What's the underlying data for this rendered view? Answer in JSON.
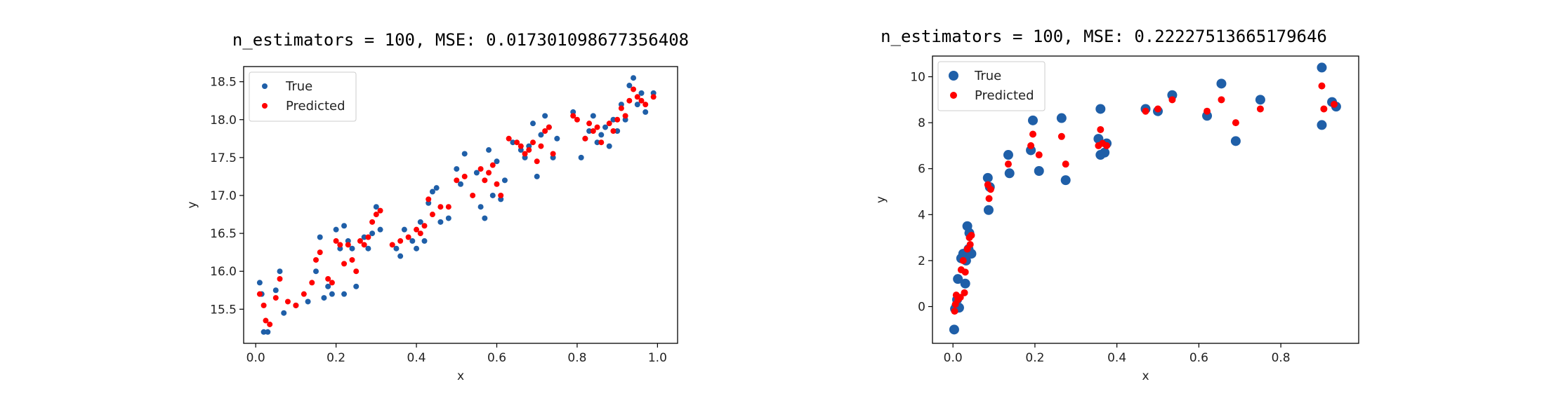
{
  "chart_data": [
    {
      "type": "scatter",
      "title": "n_estimators = 100,  MSE:  0.017301098677356408",
      "xlabel": "x",
      "ylabel": "y",
      "xlim": [
        -0.03,
        1.05
      ],
      "ylim": [
        15.05,
        18.7
      ],
      "xticks": [
        0.0,
        0.2,
        0.4,
        0.6,
        0.8,
        1.0
      ],
      "xtick_labels": [
        "0.0",
        "0.2",
        "0.4",
        "0.6",
        "0.8",
        "1.0"
      ],
      "yticks": [
        15.5,
        16.0,
        16.5,
        17.0,
        17.5,
        18.0,
        18.5
      ],
      "ytick_labels": [
        "15.5",
        "16.0",
        "16.5",
        "17.0",
        "17.5",
        "18.0",
        "18.5"
      ],
      "legend": "upper-left",
      "series": [
        {
          "name": "True",
          "color": "#1f5fa8",
          "marker_size": 4,
          "points": [
            [
              0.01,
              15.85
            ],
            [
              0.02,
              15.2
            ],
            [
              0.03,
              15.2
            ],
            [
              0.015,
              15.7
            ],
            [
              0.05,
              15.75
            ],
            [
              0.06,
              16.0
            ],
            [
              0.07,
              15.45
            ],
            [
              0.1,
              15.55
            ],
            [
              0.13,
              15.6
            ],
            [
              0.15,
              16.0
            ],
            [
              0.16,
              16.45
            ],
            [
              0.17,
              15.65
            ],
            [
              0.18,
              15.8
            ],
            [
              0.19,
              15.7
            ],
            [
              0.2,
              16.55
            ],
            [
              0.21,
              16.3
            ],
            [
              0.22,
              16.6
            ],
            [
              0.23,
              16.4
            ],
            [
              0.22,
              15.7
            ],
            [
              0.24,
              16.3
            ],
            [
              0.25,
              15.8
            ],
            [
              0.27,
              16.45
            ],
            [
              0.28,
              16.3
            ],
            [
              0.29,
              16.5
            ],
            [
              0.3,
              16.85
            ],
            [
              0.31,
              16.55
            ],
            [
              0.35,
              16.3
            ],
            [
              0.36,
              16.2
            ],
            [
              0.37,
              16.55
            ],
            [
              0.39,
              16.4
            ],
            [
              0.4,
              16.3
            ],
            [
              0.41,
              16.65
            ],
            [
              0.42,
              16.4
            ],
            [
              0.43,
              16.9
            ],
            [
              0.44,
              17.05
            ],
            [
              0.45,
              17.1
            ],
            [
              0.46,
              16.65
            ],
            [
              0.48,
              16.7
            ],
            [
              0.5,
              17.35
            ],
            [
              0.51,
              17.15
            ],
            [
              0.52,
              17.55
            ],
            [
              0.55,
              17.3
            ],
            [
              0.56,
              16.85
            ],
            [
              0.57,
              16.7
            ],
            [
              0.58,
              17.6
            ],
            [
              0.59,
              17.0
            ],
            [
              0.6,
              17.45
            ],
            [
              0.61,
              16.95
            ],
            [
              0.62,
              17.2
            ],
            [
              0.64,
              17.7
            ],
            [
              0.66,
              17.6
            ],
            [
              0.67,
              17.5
            ],
            [
              0.68,
              17.65
            ],
            [
              0.69,
              17.95
            ],
            [
              0.7,
              17.25
            ],
            [
              0.71,
              17.8
            ],
            [
              0.72,
              18.05
            ],
            [
              0.73,
              17.9
            ],
            [
              0.74,
              17.5
            ],
            [
              0.75,
              17.75
            ],
            [
              0.79,
              18.1
            ],
            [
              0.81,
              17.5
            ],
            [
              0.82,
              17.75
            ],
            [
              0.83,
              17.85
            ],
            [
              0.84,
              18.05
            ],
            [
              0.85,
              17.7
            ],
            [
              0.86,
              17.8
            ],
            [
              0.87,
              17.9
            ],
            [
              0.88,
              17.65
            ],
            [
              0.89,
              18.0
            ],
            [
              0.9,
              17.85
            ],
            [
              0.91,
              18.2
            ],
            [
              0.92,
              18.0
            ],
            [
              0.93,
              18.45
            ],
            [
              0.94,
              18.55
            ],
            [
              0.95,
              18.2
            ],
            [
              0.96,
              18.35
            ],
            [
              0.97,
              18.1
            ],
            [
              0.99,
              18.35
            ]
          ]
        },
        {
          "name": "Predicted",
          "color": "#ff0000",
          "marker_size": 4,
          "points": [
            [
              0.01,
              15.7
            ],
            [
              0.02,
              15.55
            ],
            [
              0.025,
              15.35
            ],
            [
              0.035,
              15.3
            ],
            [
              0.05,
              15.65
            ],
            [
              0.06,
              15.9
            ],
            [
              0.08,
              15.6
            ],
            [
              0.1,
              15.55
            ],
            [
              0.12,
              15.7
            ],
            [
              0.14,
              15.85
            ],
            [
              0.15,
              16.15
            ],
            [
              0.16,
              16.25
            ],
            [
              0.18,
              15.9
            ],
            [
              0.19,
              15.85
            ],
            [
              0.2,
              16.4
            ],
            [
              0.21,
              16.35
            ],
            [
              0.22,
              16.1
            ],
            [
              0.23,
              16.35
            ],
            [
              0.24,
              16.15
            ],
            [
              0.25,
              16.0
            ],
            [
              0.26,
              16.4
            ],
            [
              0.27,
              16.35
            ],
            [
              0.28,
              16.45
            ],
            [
              0.29,
              16.65
            ],
            [
              0.3,
              16.75
            ],
            [
              0.31,
              16.8
            ],
            [
              0.34,
              16.35
            ],
            [
              0.36,
              16.4
            ],
            [
              0.38,
              16.45
            ],
            [
              0.4,
              16.55
            ],
            [
              0.41,
              16.5
            ],
            [
              0.42,
              16.6
            ],
            [
              0.43,
              16.95
            ],
            [
              0.44,
              16.75
            ],
            [
              0.46,
              16.85
            ],
            [
              0.48,
              16.85
            ],
            [
              0.5,
              17.2
            ],
            [
              0.52,
              17.25
            ],
            [
              0.54,
              17.0
            ],
            [
              0.56,
              17.35
            ],
            [
              0.57,
              17.2
            ],
            [
              0.58,
              17.3
            ],
            [
              0.59,
              17.4
            ],
            [
              0.6,
              17.15
            ],
            [
              0.61,
              17.0
            ],
            [
              0.63,
              17.75
            ],
            [
              0.65,
              17.7
            ],
            [
              0.66,
              17.65
            ],
            [
              0.67,
              17.55
            ],
            [
              0.68,
              17.6
            ],
            [
              0.69,
              17.7
            ],
            [
              0.7,
              17.45
            ],
            [
              0.71,
              17.65
            ],
            [
              0.72,
              17.85
            ],
            [
              0.73,
              17.9
            ],
            [
              0.74,
              17.55
            ],
            [
              0.79,
              18.05
            ],
            [
              0.8,
              18.0
            ],
            [
              0.82,
              17.75
            ],
            [
              0.83,
              17.95
            ],
            [
              0.84,
              17.85
            ],
            [
              0.85,
              17.9
            ],
            [
              0.86,
              17.7
            ],
            [
              0.88,
              17.95
            ],
            [
              0.89,
              17.85
            ],
            [
              0.9,
              18.0
            ],
            [
              0.91,
              18.15
            ],
            [
              0.92,
              18.05
            ],
            [
              0.93,
              18.25
            ],
            [
              0.94,
              18.4
            ],
            [
              0.95,
              18.3
            ],
            [
              0.96,
              18.25
            ],
            [
              0.97,
              18.2
            ],
            [
              0.99,
              18.3
            ]
          ]
        }
      ]
    },
    {
      "type": "scatter",
      "title": "n_estimators = 100,  MSE:  0.22227513665179646",
      "xlabel": "x",
      "ylabel": "y",
      "xlim": [
        -0.05,
        0.99
      ],
      "ylim": [
        -1.6,
        10.9
      ],
      "xticks": [
        0.0,
        0.2,
        0.4,
        0.6,
        0.8
      ],
      "xtick_labels": [
        "0.0",
        "0.2",
        "0.4",
        "0.6",
        "0.8"
      ],
      "yticks": [
        0,
        2,
        4,
        6,
        8,
        10
      ],
      "ytick_labels": [
        "0",
        "2",
        "4",
        "6",
        "8",
        "10"
      ],
      "legend": "upper-left",
      "series": [
        {
          "name": "True",
          "color": "#1f5fa8",
          "marker_size": 7,
          "points": [
            [
              0.003,
              -1.0
            ],
            [
              0.005,
              -0.1
            ],
            [
              0.008,
              0.0
            ],
            [
              0.01,
              0.3
            ],
            [
              0.012,
              1.2
            ],
            [
              0.015,
              -0.05
            ],
            [
              0.02,
              2.1
            ],
            [
              0.025,
              2.3
            ],
            [
              0.03,
              1.0
            ],
            [
              0.032,
              2.0
            ],
            [
              0.035,
              3.5
            ],
            [
              0.038,
              2.5
            ],
            [
              0.04,
              3.2
            ],
            [
              0.045,
              2.3
            ],
            [
              0.085,
              5.6
            ],
            [
              0.087,
              4.2
            ],
            [
              0.09,
              5.2
            ],
            [
              0.135,
              6.6
            ],
            [
              0.138,
              5.8
            ],
            [
              0.19,
              6.8
            ],
            [
              0.195,
              8.1
            ],
            [
              0.21,
              5.9
            ],
            [
              0.265,
              8.2
            ],
            [
              0.275,
              5.5
            ],
            [
              0.355,
              7.3
            ],
            [
              0.36,
              8.6
            ],
            [
              0.36,
              6.6
            ],
            [
              0.37,
              6.7
            ],
            [
              0.375,
              7.1
            ],
            [
              0.47,
              8.6
            ],
            [
              0.5,
              8.5
            ],
            [
              0.535,
              9.2
            ],
            [
              0.62,
              8.3
            ],
            [
              0.655,
              9.7
            ],
            [
              0.69,
              7.2
            ],
            [
              0.75,
              9.0
            ],
            [
              0.9,
              10.4
            ],
            [
              0.9,
              7.9
            ],
            [
              0.925,
              8.9
            ],
            [
              0.935,
              8.7
            ]
          ]
        },
        {
          "name": "Predicted",
          "color": "#ff0000",
          "marker_size": 5,
          "points": [
            [
              0.004,
              -0.2
            ],
            [
              0.006,
              0.1
            ],
            [
              0.008,
              0.5
            ],
            [
              0.012,
              0.3
            ],
            [
              0.018,
              0.4
            ],
            [
              0.02,
              1.6
            ],
            [
              0.025,
              2.0
            ],
            [
              0.028,
              0.6
            ],
            [
              0.03,
              1.5
            ],
            [
              0.035,
              2.5
            ],
            [
              0.04,
              3.0
            ],
            [
              0.042,
              2.7
            ],
            [
              0.045,
              3.1
            ],
            [
              0.085,
              5.3
            ],
            [
              0.088,
              4.7
            ],
            [
              0.092,
              5.1
            ],
            [
              0.135,
              6.2
            ],
            [
              0.19,
              7.0
            ],
            [
              0.195,
              7.5
            ],
            [
              0.21,
              6.6
            ],
            [
              0.265,
              7.4
            ],
            [
              0.275,
              6.2
            ],
            [
              0.355,
              7.0
            ],
            [
              0.36,
              7.7
            ],
            [
              0.365,
              7.1
            ],
            [
              0.375,
              7.0
            ],
            [
              0.47,
              8.5
            ],
            [
              0.5,
              8.6
            ],
            [
              0.535,
              9.0
            ],
            [
              0.62,
              8.5
            ],
            [
              0.655,
              9.0
            ],
            [
              0.69,
              8.0
            ],
            [
              0.75,
              8.6
            ],
            [
              0.9,
              9.6
            ],
            [
              0.905,
              8.6
            ],
            [
              0.93,
              8.8
            ]
          ]
        }
      ]
    }
  ]
}
